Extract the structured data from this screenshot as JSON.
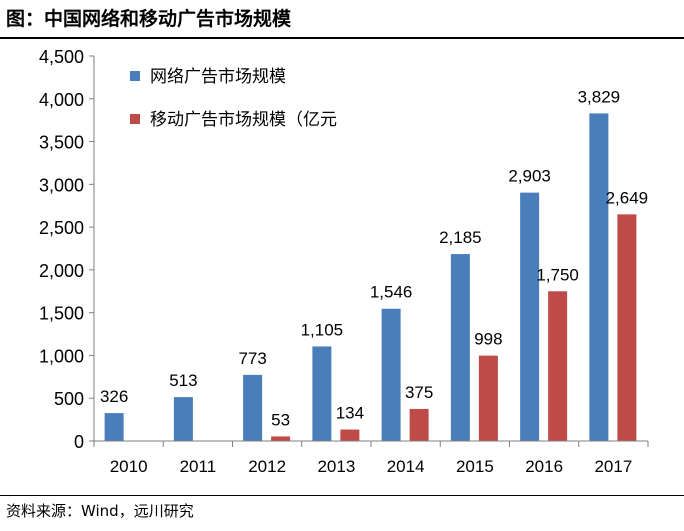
{
  "title": "图：中国网络和移动广告市场规模",
  "source": "资料来源：Wind，远川研究",
  "chart_data": {
    "type": "bar",
    "categories": [
      "2010",
      "2011",
      "2012",
      "2013",
      "2014",
      "2015",
      "2016",
      "2017"
    ],
    "series": [
      {
        "name": "网络广告市场规模",
        "color": "#4a7ebb",
        "values": [
          326,
          513,
          773,
          1105,
          1546,
          2185,
          2903,
          3829
        ],
        "labels": [
          "326",
          "513",
          "773",
          "1,105",
          "1,546",
          "2,185",
          "2,903",
          "3,829"
        ]
      },
      {
        "name": "移动广告市场规模（亿元",
        "color": "#be4b48",
        "values": [
          null,
          null,
          53,
          134,
          375,
          998,
          1750,
          2649
        ],
        "labels": [
          "",
          "",
          "53",
          "134",
          "375",
          "998",
          "1,750",
          "2,649"
        ]
      }
    ],
    "ylim": [
      0,
      4500
    ],
    "yticks": [
      0,
      500,
      1000,
      1500,
      2000,
      2500,
      3000,
      3500,
      4000,
      4500
    ],
    "ytick_labels": [
      "0",
      "500",
      "1,000",
      "1,500",
      "2,000",
      "2,500",
      "3,000",
      "3,500",
      "4,000",
      "4,500"
    ],
    "legend_position": "top-left",
    "grid": false
  }
}
